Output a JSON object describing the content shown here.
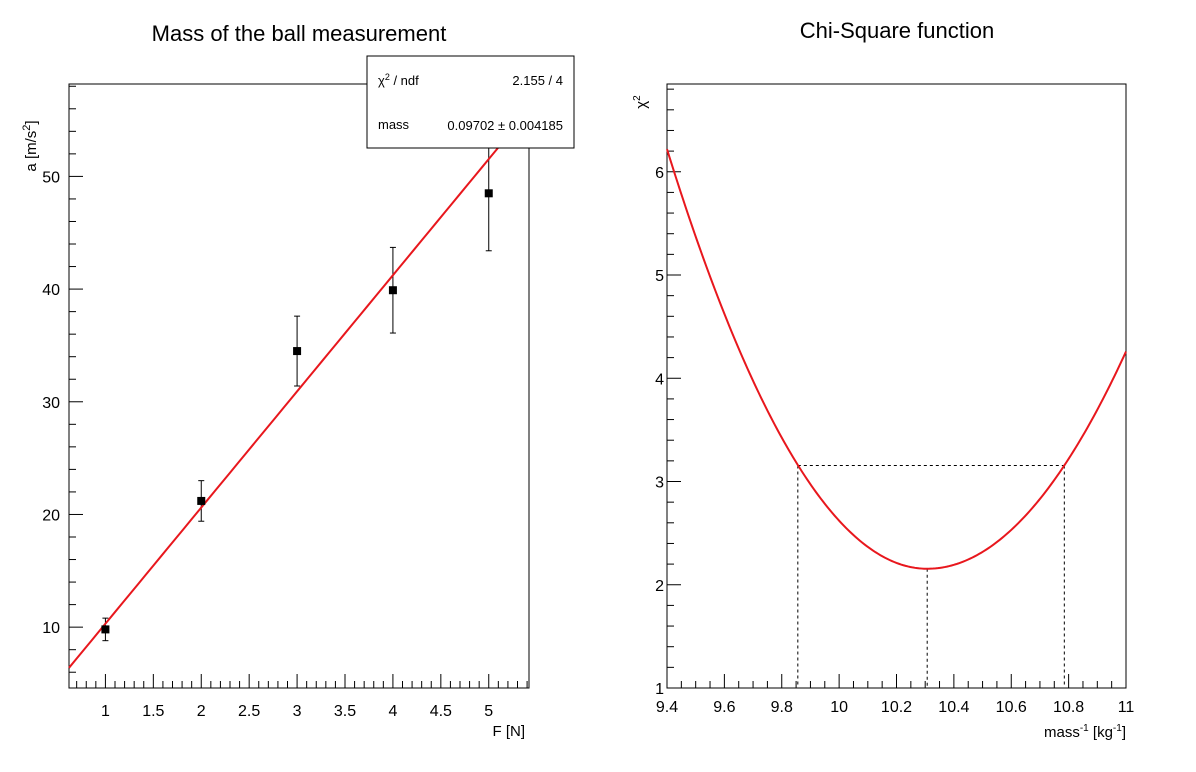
{
  "colors": {
    "fit_line": "#e8171d",
    "markers": "#000000",
    "background": "#ffffff"
  },
  "chart_data": [
    {
      "type": "scatter",
      "title": "Mass of the ball measurement",
      "xlabel": "F [N]",
      "ylabel_base": "a [m/s",
      "ylabel_sup": "2",
      "ylabel_end": "]",
      "xlim": [
        0.62,
        5.42
      ],
      "ylim": [
        4.6,
        58.2
      ],
      "xticks": [
        1,
        1.5,
        2,
        2.5,
        3,
        3.5,
        4,
        4.5,
        5
      ],
      "xtick_labels": [
        "1",
        "1.5",
        "2",
        "2.5",
        "3",
        "3.5",
        "4",
        "4.5",
        "5"
      ],
      "yticks": [
        10,
        20,
        30,
        40,
        50
      ],
      "ytick_labels": [
        "10",
        "20",
        "30",
        "40",
        "50"
      ],
      "points": [
        {
          "x": 1,
          "y": 9.8,
          "err": 1.0
        },
        {
          "x": 2,
          "y": 21.2,
          "err": 1.8
        },
        {
          "x": 3,
          "y": 34.5,
          "err": 3.1
        },
        {
          "x": 4,
          "y": 39.9,
          "err": 3.8
        },
        {
          "x": 5,
          "y": 48.5,
          "err": 5.1
        }
      ],
      "fit": {
        "function": "a = F / mass",
        "mass": 0.09702
      },
      "stats": {
        "chi2_label_sym": "χ",
        "chi2_label_sup": "2",
        "chi2_label_rest": " / ndf",
        "chi2_value": "2.155 / 4",
        "mass_label": "mass",
        "mass_value": "0.09702 ± 0.004185"
      }
    },
    {
      "type": "line",
      "title": "Chi-Square function",
      "xlabel_base": "mass",
      "xlabel_sup": "-1",
      "xlabel_mid": " [kg",
      "xlabel_sup2": "-1",
      "xlabel_end": "]",
      "ylabel_sym": "χ",
      "ylabel_sup": "2",
      "xlim": [
        9.4,
        11.0
      ],
      "ylim": [
        1,
        6.85
      ],
      "xticks": [
        9.4,
        9.6,
        9.8,
        10,
        10.2,
        10.4,
        10.6,
        10.8,
        11
      ],
      "xtick_labels": [
        "9.4",
        "9.6",
        "9.8",
        "10",
        "10.2",
        "10.4",
        "10.6",
        "10.8",
        "11"
      ],
      "yticks": [
        1,
        2,
        3,
        4,
        5,
        6
      ],
      "ytick_labels": [
        "1",
        "2",
        "3",
        "4",
        "5",
        "6"
      ],
      "curve": {
        "min_x": 10.307,
        "min_y": 2.155,
        "coef_left": 4.94,
        "coef_right": 4.38
      },
      "interval": {
        "lower": 9.856,
        "upper": 10.785,
        "level": 3.155
      }
    }
  ]
}
